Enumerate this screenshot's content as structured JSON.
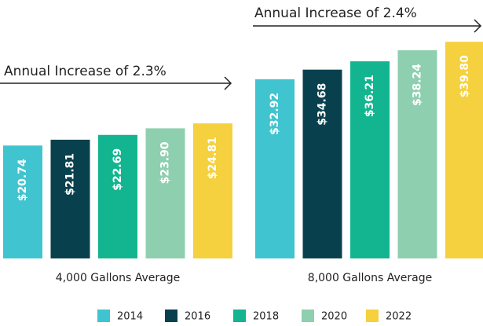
{
  "chart_data": {
    "type": "bar",
    "categories": [
      "4,000 Gallons Average",
      "8,000 Gallons Average"
    ],
    "series": [
      {
        "name": "2014",
        "color": "#40c4cf",
        "values": [
          20.74,
          32.92
        ],
        "value_labels": [
          "$20.74",
          "$32.92"
        ]
      },
      {
        "name": "2016",
        "color": "#08414d",
        "values": [
          21.81,
          34.68
        ],
        "value_labels": [
          "$21.81",
          "$34.68"
        ]
      },
      {
        "name": "2018",
        "color": "#12b58f",
        "values": [
          22.69,
          36.21
        ],
        "value_labels": [
          "$22.69",
          "$36.21"
        ]
      },
      {
        "name": "2020",
        "color": "#8ecfb0",
        "values": [
          23.9,
          38.24
        ],
        "value_labels": [
          "$23.90",
          "$38.24"
        ]
      },
      {
        "name": "2022",
        "color": "#f5d03f",
        "values": [
          24.81,
          39.8
        ],
        "value_labels": [
          "$24.81",
          "$39.80"
        ]
      }
    ],
    "annotations": [
      "Annual Increase of 2.3%",
      "Annual Increase of 2.4%"
    ],
    "legend": "bottom"
  }
}
